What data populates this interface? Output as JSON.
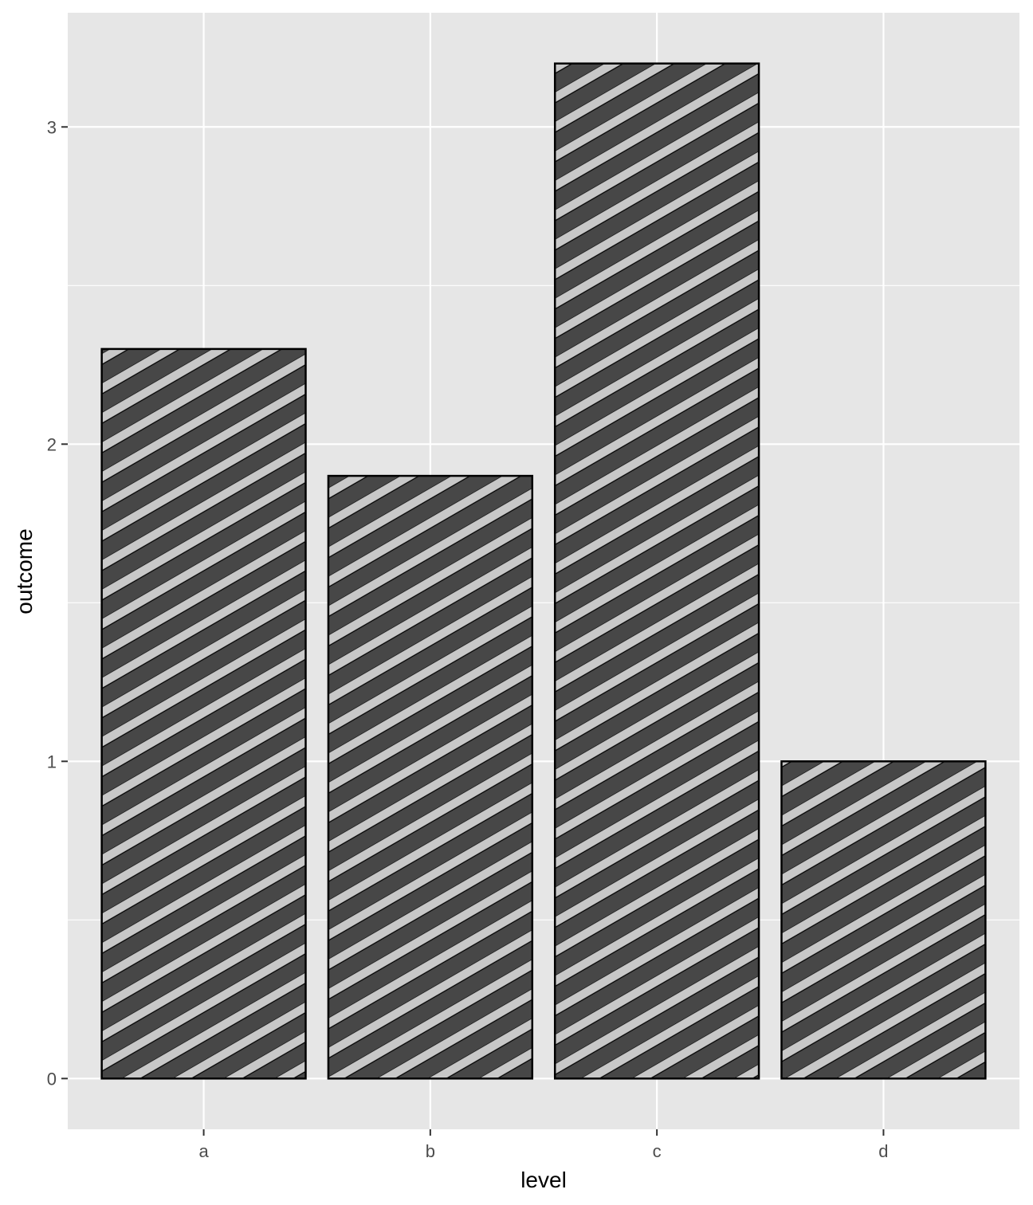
{
  "chart_data": {
    "type": "bar",
    "categories": [
      "a",
      "b",
      "c",
      "d"
    ],
    "values": [
      2.3,
      1.9,
      3.2,
      1.0
    ],
    "xlabel": "level",
    "ylabel": "outcome",
    "ylim": [
      -0.16,
      3.36
    ],
    "yticks": [
      0,
      1,
      2,
      3
    ],
    "ytick_labels": [
      "0",
      "1",
      "2",
      "3"
    ],
    "grid": true,
    "legend": "none",
    "pattern": "stripe",
    "colors": {
      "panel_background": "#e6e6e6",
      "grid": "#ffffff",
      "bar_fill": "#474747",
      "stripe": "#c8c8c8",
      "bar_outline": "#000000",
      "tick_text": "#4d4d4d",
      "axis_title": "#000000"
    }
  }
}
